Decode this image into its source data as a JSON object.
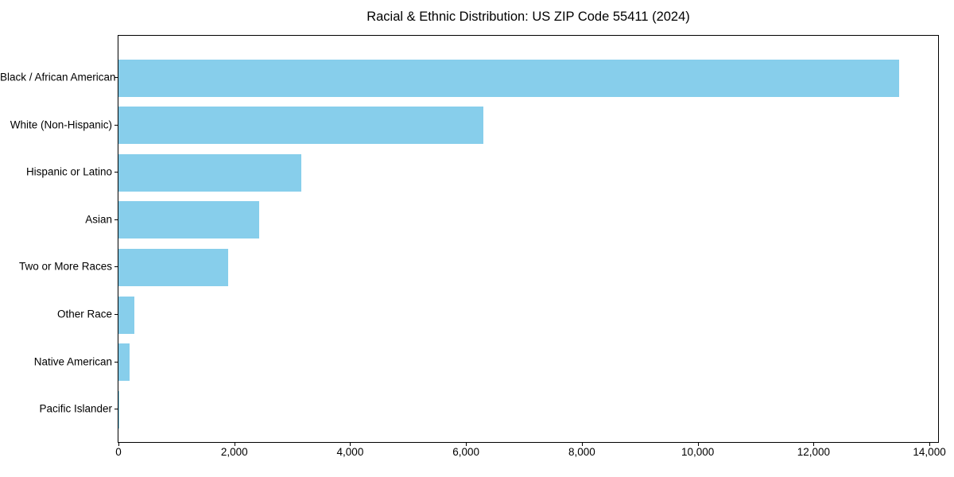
{
  "chart_data": {
    "type": "bar",
    "orientation": "horizontal",
    "title": "Racial & Ethnic Distribution: US ZIP Code 55411 (2024)",
    "categories": [
      "Black / African American",
      "White (Non-Hispanic)",
      "Hispanic or Latino",
      "Asian",
      "Two or More Races",
      "Other Race",
      "Native American",
      "Pacific Islander"
    ],
    "values": [
      13480,
      6300,
      3160,
      2430,
      1900,
      280,
      190,
      10
    ],
    "xlabel": "",
    "ylabel": "",
    "xlim": [
      0,
      14150
    ],
    "xticks": [
      0,
      2000,
      4000,
      6000,
      8000,
      10000,
      12000,
      14000
    ],
    "xtick_labels": [
      "0",
      "2,000",
      "4,000",
      "6,000",
      "8,000",
      "10,000",
      "12,000",
      "14,000"
    ],
    "bar_color": "#87CEEB",
    "axis_color": "#000000",
    "background_color": "#ffffff",
    "grid": false,
    "legend_position": "none"
  }
}
